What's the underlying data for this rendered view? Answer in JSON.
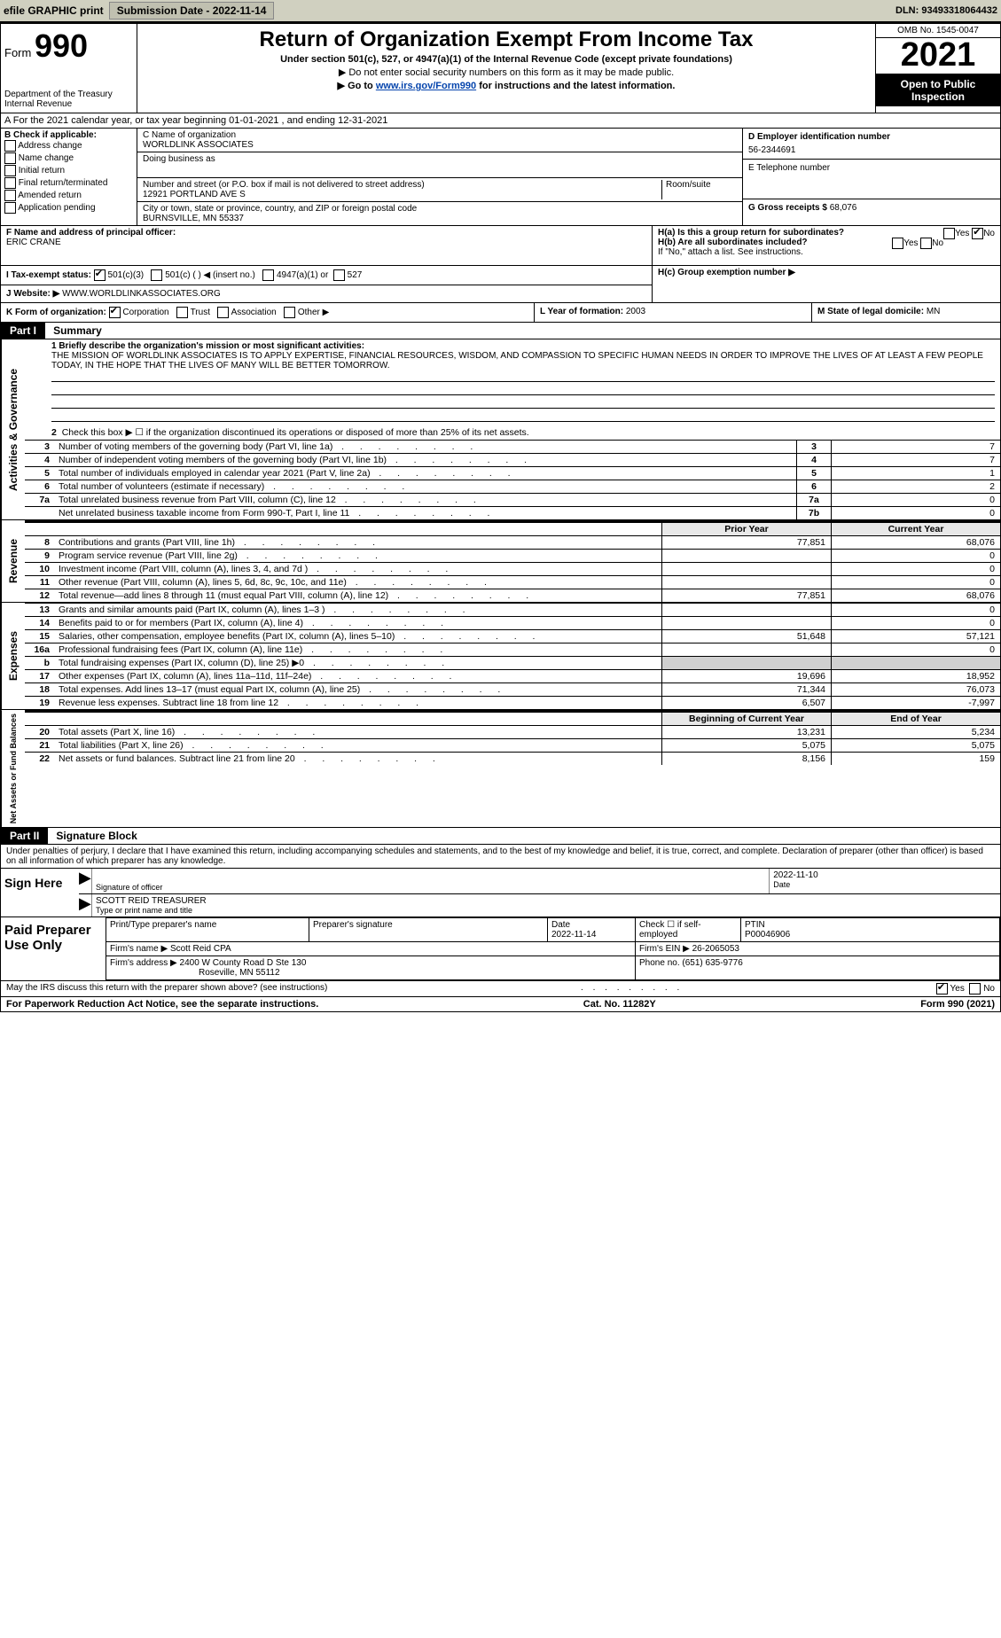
{
  "topbar": {
    "efile": "efile GRAPHIC print",
    "subdate_label": "Submission Date - 2022-11-14",
    "dln_label": "DLN: 93493318064432"
  },
  "header": {
    "form_label": "Form",
    "form_num": "990",
    "dept": "Department of the Treasury",
    "irs": "Internal Revenue",
    "title": "Return of Organization Exempt From Income Tax",
    "subtitle": "Under section 501(c), 527, or 4947(a)(1) of the Internal Revenue Code (except private foundations)",
    "ssn_note": "▶ Do not enter social security numbers on this form as it may be made public.",
    "goto_pre": "▶ Go to ",
    "goto_link": "www.irs.gov/Form990",
    "goto_post": " for instructions and the latest information.",
    "omb": "OMB No. 1545-0047",
    "year": "2021",
    "opi": "Open to Public Inspection"
  },
  "rowA": "A For the 2021 calendar year, or tax year beginning 01-01-2021   , and ending 12-31-2021",
  "boxB": {
    "label": "B Check if applicable:",
    "items": [
      "Address change",
      "Name change",
      "Initial return",
      "Final return/terminated",
      "Amended return",
      "Application pending"
    ]
  },
  "boxC": {
    "label": "C Name of organization",
    "name": "WORLDLINK ASSOCIATES",
    "dba_label": "Doing business as",
    "addr_label": "Number and street (or P.O. box if mail is not delivered to street address)",
    "room_label": "Room/suite",
    "addr": "12921 PORTLAND AVE S",
    "city_label": "City or town, state or province, country, and ZIP or foreign postal code",
    "city": "BURNSVILLE, MN  55337"
  },
  "boxD": {
    "label": "D Employer identification number",
    "value": "56-2344691"
  },
  "boxE": {
    "label": "E Telephone number",
    "value": ""
  },
  "boxG": {
    "label": "G Gross receipts $",
    "value": "68,076"
  },
  "boxF": {
    "label": "F  Name and address of principal officer:",
    "value": "ERIC CRANE"
  },
  "boxH": {
    "a": "H(a)  Is this a group return for subordinates?",
    "b": "H(b)  Are all subordinates included?",
    "note": "If \"No,\" attach a list. See instructions.",
    "c": "H(c)  Group exemption number ▶",
    "yes": "Yes",
    "no": "No"
  },
  "boxI": {
    "label": "I    Tax-exempt status:",
    "opt1": "501(c)(3)",
    "opt2": "501(c) (  ) ◀ (insert no.)",
    "opt3": "4947(a)(1) or",
    "opt4": "527"
  },
  "boxJ": {
    "label": "J    Website: ▶",
    "value": "WWW.WORLDLINKASSOCIATES.ORG"
  },
  "boxK": {
    "label": "K Form of organization:",
    "opts": [
      "Corporation",
      "Trust",
      "Association",
      "Other ▶"
    ]
  },
  "boxL": {
    "label": "L Year of formation:",
    "value": "2003"
  },
  "boxM": {
    "label": "M State of legal domicile:",
    "value": "MN"
  },
  "part1": {
    "hdr": "Part I",
    "title": "Summary",
    "q1": "1  Briefly describe the organization's mission or most significant activities:",
    "mission": "THE MISSION OF WORLDLINK ASSOCIATES IS TO APPLY EXPERTISE, FINANCIAL RESOURCES, WISDOM, AND COMPASSION TO SPECIFIC HUMAN NEEDS IN ORDER TO IMPROVE THE LIVES OF AT LEAST A FEW PEOPLE TODAY, IN THE HOPE THAT THE LIVES OF MANY WILL BE BETTER TOMORROW.",
    "q2": "Check this box ▶ ☐  if the organization discontinued its operations or disposed of more than 25% of its net assets.",
    "rows_gov": [
      {
        "n": "3",
        "d": "Number of voting members of the governing body (Part VI, line 1a)",
        "box": "3",
        "v": "7"
      },
      {
        "n": "4",
        "d": "Number of independent voting members of the governing body (Part VI, line 1b)",
        "box": "4",
        "v": "7"
      },
      {
        "n": "5",
        "d": "Total number of individuals employed in calendar year 2021 (Part V, line 2a)",
        "box": "5",
        "v": "1"
      },
      {
        "n": "6",
        "d": "Total number of volunteers (estimate if necessary)",
        "box": "6",
        "v": "2"
      },
      {
        "n": "7a",
        "d": "Total unrelated business revenue from Part VIII, column (C), line 12",
        "box": "7a",
        "v": "0"
      },
      {
        "n": "",
        "d": "Net unrelated business taxable income from Form 990-T, Part I, line 11",
        "box": "7b",
        "v": "0"
      }
    ],
    "col_py": "Prior Year",
    "col_cy": "Current Year",
    "rows_rev": [
      {
        "n": "8",
        "d": "Contributions and grants (Part VIII, line 1h)",
        "py": "77,851",
        "cy": "68,076"
      },
      {
        "n": "9",
        "d": "Program service revenue (Part VIII, line 2g)",
        "py": "",
        "cy": "0"
      },
      {
        "n": "10",
        "d": "Investment income (Part VIII, column (A), lines 3, 4, and 7d )",
        "py": "",
        "cy": "0"
      },
      {
        "n": "11",
        "d": "Other revenue (Part VIII, column (A), lines 5, 6d, 8c, 9c, 10c, and 11e)",
        "py": "",
        "cy": "0"
      },
      {
        "n": "12",
        "d": "Total revenue—add lines 8 through 11 (must equal Part VIII, column (A), line 12)",
        "py": "77,851",
        "cy": "68,076"
      }
    ],
    "rows_exp": [
      {
        "n": "13",
        "d": "Grants and similar amounts paid (Part IX, column (A), lines 1–3 )",
        "py": "",
        "cy": "0"
      },
      {
        "n": "14",
        "d": "Benefits paid to or for members (Part IX, column (A), line 4)",
        "py": "",
        "cy": "0"
      },
      {
        "n": "15",
        "d": "Salaries, other compensation, employee benefits (Part IX, column (A), lines 5–10)",
        "py": "51,648",
        "cy": "57,121"
      },
      {
        "n": "16a",
        "d": "Professional fundraising fees (Part IX, column (A), line 11e)",
        "py": "",
        "cy": "0"
      },
      {
        "n": "b",
        "d": "Total fundraising expenses (Part IX, column (D), line 25) ▶0",
        "py": "GREY",
        "cy": "GREY"
      },
      {
        "n": "17",
        "d": "Other expenses (Part IX, column (A), lines 11a–11d, 11f–24e)",
        "py": "19,696",
        "cy": "18,952"
      },
      {
        "n": "18",
        "d": "Total expenses. Add lines 13–17 (must equal Part IX, column (A), line 25)",
        "py": "71,344",
        "cy": "76,073"
      },
      {
        "n": "19",
        "d": "Revenue less expenses. Subtract line 18 from line 12",
        "py": "6,507",
        "cy": "-7,997"
      }
    ],
    "col_bcy": "Beginning of Current Year",
    "col_eoy": "End of Year",
    "rows_na": [
      {
        "n": "20",
        "d": "Total assets (Part X, line 16)",
        "py": "13,231",
        "cy": "5,234"
      },
      {
        "n": "21",
        "d": "Total liabilities (Part X, line 26)",
        "py": "5,075",
        "cy": "5,075"
      },
      {
        "n": "22",
        "d": "Net assets or fund balances. Subtract line 21 from line 20",
        "py": "8,156",
        "cy": "159"
      }
    ],
    "vlab_gov": "Activities & Governance",
    "vlab_rev": "Revenue",
    "vlab_exp": "Expenses",
    "vlab_na": "Net Assets or Fund Balances"
  },
  "part2": {
    "hdr": "Part II",
    "title": "Signature Block",
    "decl": "Under penalties of perjury, I declare that I have examined this return, including accompanying schedules and statements, and to the best of my knowledge and belief, it is true, correct, and complete. Declaration of preparer (other than officer) is based on all information of which preparer has any knowledge.",
    "sign_here": "Sign Here",
    "sig_officer": "Signature of officer",
    "sig_date": "Date",
    "sig_date_val": "2022-11-10",
    "sig_name": "SCOTT REID  TREASURER",
    "sig_name_lbl": "Type or print name and title",
    "paid": "Paid Preparer Use Only",
    "prep_name_lbl": "Print/Type preparer's name",
    "prep_sig_lbl": "Preparer's signature",
    "prep_date_lbl": "Date",
    "prep_date": "2022-11-14",
    "prep_check": "Check ☐ if self-employed",
    "ptin_lbl": "PTIN",
    "ptin": "P00046906",
    "firm_name_lbl": "Firm's name    ▶",
    "firm_name": "Scott Reid CPA",
    "firm_ein_lbl": "Firm's EIN ▶",
    "firm_ein": "26-2065053",
    "firm_addr_lbl": "Firm's address ▶",
    "firm_addr": "2400 W County Road D Ste 130",
    "firm_city": "Roseville, MN  55112",
    "firm_phone_lbl": "Phone no.",
    "firm_phone": "(651) 635-9776"
  },
  "footer": {
    "q": "May the IRS discuss this return with the preparer shown above? (see instructions)",
    "yes": "Yes",
    "no": "No",
    "pra": "For Paperwork Reduction Act Notice, see the separate instructions.",
    "cat": "Cat. No. 11282Y",
    "form": "Form 990 (2021)"
  }
}
